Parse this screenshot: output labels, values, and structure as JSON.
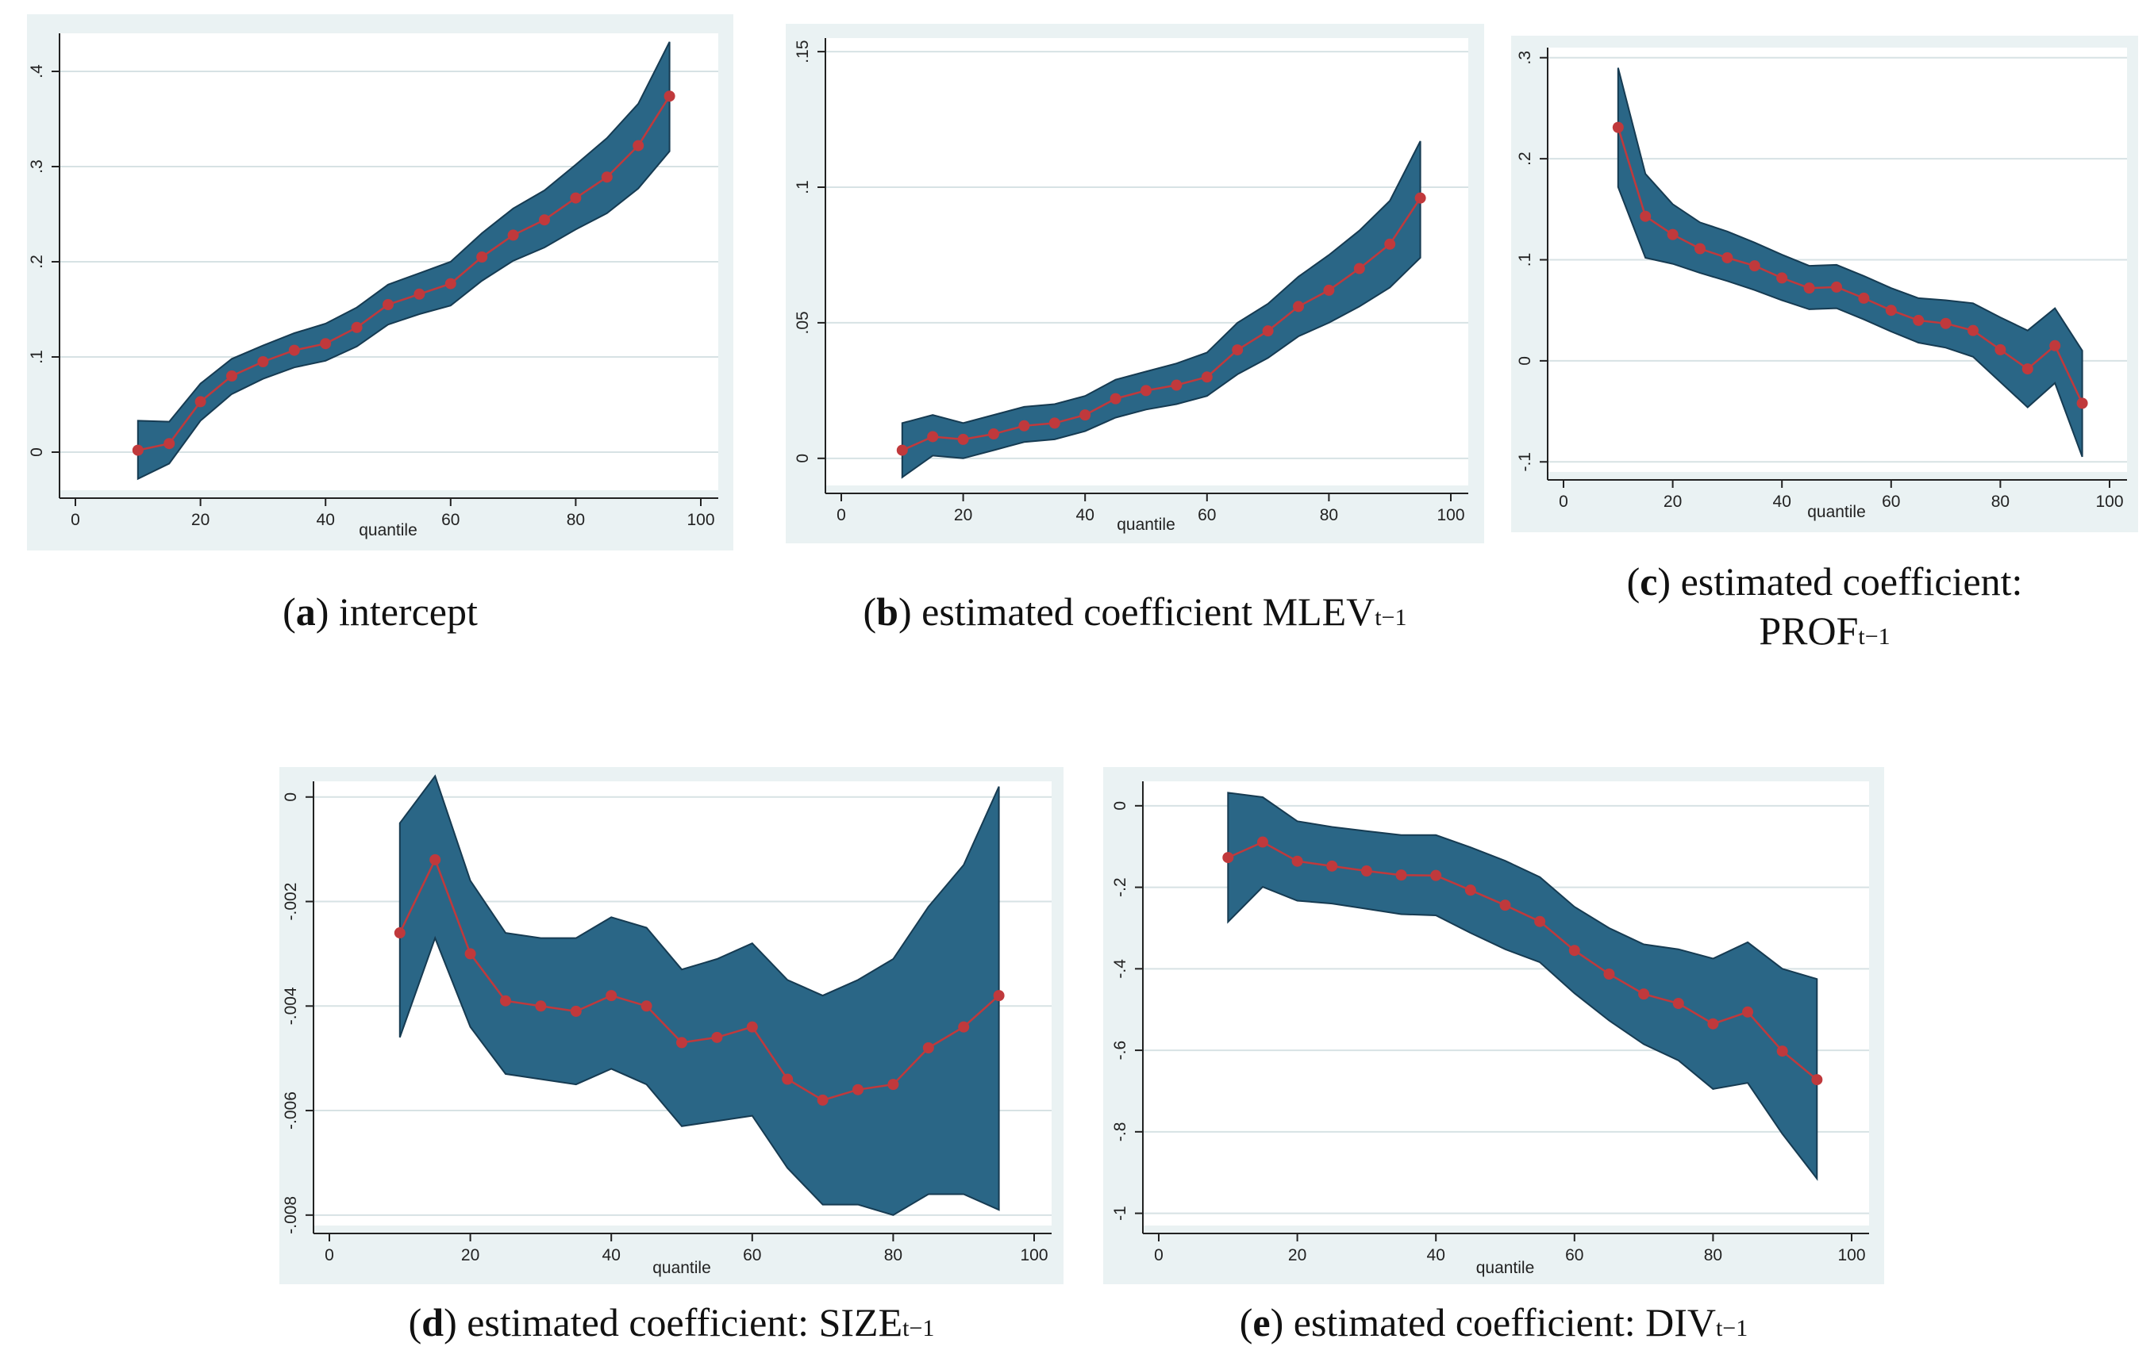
{
  "chart_data": [
    {
      "id": "a",
      "type": "line",
      "caption": {
        "letter": "a",
        "text": " intercept",
        "subscript": ""
      },
      "xlabel": "quantile",
      "ylabel": "",
      "xlim": [
        0,
        100
      ],
      "ylim": [
        -0.04,
        0.44
      ],
      "xticks": [
        0,
        20,
        40,
        60,
        80,
        100
      ],
      "xtick_labels": [
        "0",
        "20",
        "40",
        "60",
        "80",
        "100"
      ],
      "yticks": [
        0,
        0.1,
        0.2,
        0.3,
        0.4
      ],
      "ytick_labels": [
        "0",
        ".1",
        ".2",
        ".3",
        ".4"
      ],
      "grid": true,
      "series": [
        {
          "name": "estimate",
          "x": [
            10,
            15,
            20,
            25,
            30,
            35,
            40,
            45,
            50,
            55,
            60,
            65,
            70,
            75,
            80,
            85,
            90,
            95
          ],
          "values": [
            0.002,
            0.009,
            0.053,
            0.08,
            0.095,
            0.107,
            0.114,
            0.131,
            0.155,
            0.166,
            0.177,
            0.205,
            0.228,
            0.244,
            0.267,
            0.289,
            0.322,
            0.374
          ]
        },
        {
          "name": "upper",
          "values": [
            0.033,
            0.032,
            0.072,
            0.098,
            0.112,
            0.125,
            0.135,
            0.152,
            0.176,
            0.188,
            0.2,
            0.23,
            0.256,
            0.275,
            0.302,
            0.33,
            0.366,
            0.431
          ]
        },
        {
          "name": "lower",
          "values": [
            -0.028,
            -0.012,
            0.033,
            0.061,
            0.077,
            0.089,
            0.096,
            0.111,
            0.134,
            0.145,
            0.154,
            0.18,
            0.201,
            0.215,
            0.234,
            0.251,
            0.277,
            0.316
          ]
        }
      ]
    },
    {
      "id": "b",
      "type": "line",
      "caption": {
        "letter": "b",
        "text": " estimated coefficient MLEV",
        "subscript": "t−1"
      },
      "xlabel": "quantile",
      "ylabel": "",
      "xlim": [
        0,
        100
      ],
      "ylim": [
        -0.01,
        0.155
      ],
      "xticks": [
        0,
        20,
        40,
        60,
        80,
        100
      ],
      "xtick_labels": [
        "0",
        "20",
        "40",
        "60",
        "80",
        "100"
      ],
      "yticks": [
        0,
        0.05,
        0.1,
        0.15
      ],
      "ytick_labels": [
        "0",
        ".05",
        ".1",
        ".15"
      ],
      "grid": true,
      "series": [
        {
          "name": "estimate",
          "x": [
            10,
            15,
            20,
            25,
            30,
            35,
            40,
            45,
            50,
            55,
            60,
            65,
            70,
            75,
            80,
            85,
            90,
            95
          ],
          "values": [
            0.003,
            0.008,
            0.007,
            0.009,
            0.012,
            0.013,
            0.016,
            0.022,
            0.025,
            0.027,
            0.03,
            0.04,
            0.047,
            0.056,
            0.062,
            0.07,
            0.079,
            0.096
          ]
        },
        {
          "name": "upper",
          "values": [
            0.013,
            0.016,
            0.013,
            0.016,
            0.019,
            0.02,
            0.023,
            0.029,
            0.032,
            0.035,
            0.039,
            0.05,
            0.057,
            0.067,
            0.075,
            0.084,
            0.095,
            0.117
          ]
        },
        {
          "name": "lower",
          "values": [
            -0.007,
            0.001,
            0.0,
            0.003,
            0.006,
            0.007,
            0.01,
            0.015,
            0.018,
            0.02,
            0.023,
            0.031,
            0.037,
            0.045,
            0.05,
            0.056,
            0.063,
            0.074
          ]
        }
      ]
    },
    {
      "id": "c",
      "type": "line",
      "caption": {
        "letter": "c",
        "text": " estimated coefficient:",
        "line2": "PROF",
        "subscript": "t−1"
      },
      "xlabel": "quantile",
      "ylabel": "",
      "xlim": [
        0,
        100
      ],
      "ylim": [
        -0.11,
        0.31
      ],
      "xticks": [
        0,
        20,
        40,
        60,
        80,
        100
      ],
      "xtick_labels": [
        "0",
        "20",
        "40",
        "60",
        "80",
        "100"
      ],
      "yticks": [
        -0.1,
        0,
        0.1,
        0.2,
        0.3
      ],
      "ytick_labels": [
        "-.1",
        "0",
        ".1",
        ".2",
        ".3"
      ],
      "grid": true,
      "series": [
        {
          "name": "estimate",
          "x": [
            10,
            15,
            20,
            25,
            30,
            35,
            40,
            45,
            50,
            55,
            60,
            65,
            70,
            75,
            80,
            85,
            90,
            95
          ],
          "values": [
            0.231,
            0.143,
            0.125,
            0.111,
            0.102,
            0.094,
            0.082,
            0.072,
            0.073,
            0.062,
            0.05,
            0.04,
            0.037,
            0.03,
            0.011,
            -0.008,
            0.015,
            -0.042
          ]
        },
        {
          "name": "upper",
          "values": [
            0.29,
            0.185,
            0.155,
            0.137,
            0.128,
            0.117,
            0.105,
            0.094,
            0.095,
            0.084,
            0.072,
            0.062,
            0.06,
            0.057,
            0.043,
            0.03,
            0.052,
            0.01
          ]
        },
        {
          "name": "lower",
          "values": [
            0.172,
            0.102,
            0.096,
            0.087,
            0.079,
            0.07,
            0.06,
            0.051,
            0.052,
            0.041,
            0.029,
            0.018,
            0.013,
            0.004,
            -0.021,
            -0.046,
            -0.022,
            -0.095
          ]
        }
      ]
    },
    {
      "id": "d",
      "type": "line",
      "caption": {
        "letter": "d",
        "text": " estimated coefficient: SIZE",
        "subscript": "t−1"
      },
      "xlabel": "quantile",
      "ylabel": "",
      "xlim": [
        0,
        100
      ],
      "ylim": [
        -0.0082,
        0.0003
      ],
      "xticks": [
        0,
        20,
        40,
        60,
        80,
        100
      ],
      "xtick_labels": [
        "0",
        "20",
        "40",
        "60",
        "80",
        "100"
      ],
      "yticks": [
        -0.008,
        -0.006,
        -0.004,
        -0.002,
        0
      ],
      "ytick_labels": [
        "-.008",
        "-.006",
        "-.004",
        "-.002",
        "0"
      ],
      "grid": true,
      "series": [
        {
          "name": "estimate",
          "x": [
            10,
            15,
            20,
            25,
            30,
            35,
            40,
            45,
            50,
            55,
            60,
            65,
            70,
            75,
            80,
            85,
            90,
            95
          ],
          "values": [
            -0.0026,
            -0.0012,
            -0.003,
            -0.0039,
            -0.004,
            -0.0041,
            -0.0038,
            -0.004,
            -0.0047,
            -0.0046,
            -0.0044,
            -0.0054,
            -0.0058,
            -0.0056,
            -0.0055,
            -0.0048,
            -0.0044,
            -0.0038
          ]
        },
        {
          "name": "upper",
          "values": [
            -0.0005,
            0.0004,
            -0.0016,
            -0.0026,
            -0.0027,
            -0.0027,
            -0.0023,
            -0.0025,
            -0.0033,
            -0.0031,
            -0.0028,
            -0.0035,
            -0.0038,
            -0.0035,
            -0.0031,
            -0.0021,
            -0.0013,
            0.0002
          ]
        },
        {
          "name": "lower",
          "values": [
            -0.0046,
            -0.0027,
            -0.0044,
            -0.0053,
            -0.0054,
            -0.0055,
            -0.0052,
            -0.0055,
            -0.0063,
            -0.0062,
            -0.0061,
            -0.0071,
            -0.0078,
            -0.0078,
            -0.008,
            -0.0076,
            -0.0076,
            -0.0079
          ]
        }
      ]
    },
    {
      "id": "e",
      "type": "line",
      "caption": {
        "letter": "e",
        "text": " estimated coefficient: DIV",
        "subscript": "t−1"
      },
      "xlabel": "quantile",
      "ylabel": "",
      "xlim": [
        0,
        100
      ],
      "ylim": [
        -1.03,
        0.06
      ],
      "xticks": [
        0,
        20,
        40,
        60,
        80,
        100
      ],
      "xtick_labels": [
        "0",
        "20",
        "40",
        "60",
        "80",
        "100"
      ],
      "yticks": [
        -1,
        -0.8,
        -0.6,
        -0.4,
        -0.2,
        0
      ],
      "ytick_labels": [
        "-1",
        "-.8",
        "-.6",
        "-.4",
        "-.2",
        "0"
      ],
      "grid": true,
      "series": [
        {
          "name": "estimate",
          "x": [
            10,
            15,
            20,
            25,
            30,
            35,
            40,
            45,
            50,
            55,
            60,
            65,
            70,
            75,
            80,
            85,
            90,
            95
          ],
          "values": [
            -0.127,
            -0.089,
            -0.136,
            -0.148,
            -0.16,
            -0.17,
            -0.171,
            -0.207,
            -0.244,
            -0.284,
            -0.355,
            -0.413,
            -0.462,
            -0.485,
            -0.535,
            -0.506,
            -0.602,
            -0.672
          ]
        },
        {
          "name": "upper",
          "values": [
            0.032,
            0.021,
            -0.038,
            -0.052,
            -0.062,
            -0.072,
            -0.072,
            -0.102,
            -0.135,
            -0.175,
            -0.248,
            -0.3,
            -0.34,
            -0.352,
            -0.375,
            -0.335,
            -0.4,
            -0.425
          ]
        },
        {
          "name": "lower",
          "values": [
            -0.285,
            -0.199,
            -0.233,
            -0.24,
            -0.253,
            -0.266,
            -0.269,
            -0.312,
            -0.352,
            -0.384,
            -0.46,
            -0.527,
            -0.585,
            -0.625,
            -0.695,
            -0.68,
            -0.805,
            -0.915
          ]
        }
      ]
    }
  ],
  "style": {
    "band_color": "#2a6686",
    "band_edge": "#163b52",
    "line_color": "#c0393c",
    "marker_color": "#c0393c",
    "plot_bg": "#eaf2f3",
    "grid_color": "#d7e2e4"
  }
}
